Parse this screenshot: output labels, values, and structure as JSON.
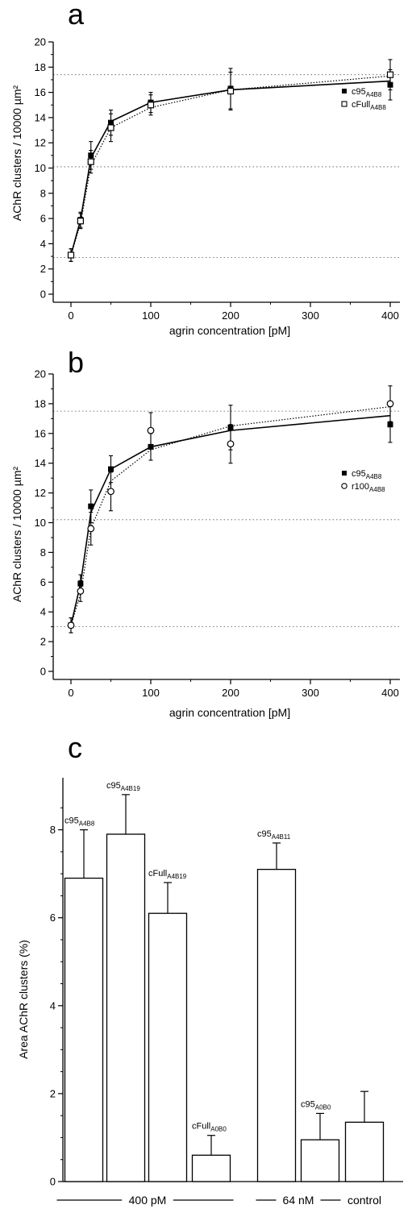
{
  "chart_data": [
    {
      "panel": "a",
      "type": "line",
      "xlabel": "agrin concentration [pM]",
      "ylabel": "AChR clusters / 10000 µm²",
      "xlim": [
        0,
        400
      ],
      "ylim": [
        0,
        20
      ],
      "xticks": [
        0,
        100,
        200,
        300,
        400
      ],
      "yticks": [
        0,
        2,
        4,
        6,
        8,
        10,
        12,
        14,
        16,
        18,
        20
      ],
      "reference_lines": [
        2.9,
        10.1,
        17.4
      ],
      "legend_position": "right",
      "series": [
        {
          "name": "c95",
          "subscript": "A4B8",
          "marker": "filled-square",
          "line": "solid",
          "x": [
            0,
            12,
            25,
            50,
            100,
            200,
            400
          ],
          "y": [
            3.1,
            5.9,
            11.0,
            13.6,
            15.2,
            16.3,
            16.6
          ],
          "err": [
            0.5,
            0.6,
            1.1,
            1.0,
            0.8,
            1.6,
            1.2
          ],
          "fit": [
            3.1,
            5.9,
            10.8,
            13.7,
            15.2,
            16.2,
            16.9
          ]
        },
        {
          "name": "cFull",
          "subscript": "A4B8",
          "marker": "open-square",
          "line": "dotted",
          "x": [
            0,
            12,
            25,
            50,
            100,
            200,
            400
          ],
          "y": [
            3.1,
            5.8,
            10.5,
            13.2,
            15.0,
            16.1,
            17.4
          ],
          "err": [
            0.5,
            0.6,
            0.9,
            1.1,
            0.8,
            1.5,
            1.2
          ],
          "fit": [
            3.1,
            5.6,
            10.2,
            13.2,
            14.8,
            16.2,
            17.3
          ]
        }
      ]
    },
    {
      "panel": "b",
      "type": "line",
      "xlabel": "agrin concentration [pM]",
      "ylabel": "AChR clusters / 10000 µm²",
      "xlim": [
        0,
        400
      ],
      "ylim": [
        0,
        20
      ],
      "xticks": [
        0,
        100,
        200,
        300,
        400
      ],
      "yticks": [
        0,
        2,
        4,
        6,
        8,
        10,
        12,
        14,
        16,
        18,
        20
      ],
      "reference_lines": [
        3.0,
        10.2,
        17.5
      ],
      "legend_position": "right",
      "series": [
        {
          "name": "c95",
          "subscript": "A4B8",
          "marker": "filled-square",
          "line": "solid",
          "x": [
            0,
            12,
            25,
            50,
            100,
            200,
            400
          ],
          "y": [
            3.1,
            5.9,
            11.1,
            13.6,
            15.1,
            16.4,
            16.6
          ],
          "err": [
            0.5,
            0.6,
            1.1,
            0.9,
            0.9,
            1.5,
            1.2
          ],
          "fit": [
            3.1,
            5.9,
            10.7,
            13.6,
            15.1,
            16.2,
            17.2
          ]
        },
        {
          "name": "r100",
          "subscript": "A4B8",
          "marker": "open-circle",
          "line": "dotted",
          "x": [
            0,
            12,
            25,
            50,
            100,
            200,
            400
          ],
          "y": [
            3.1,
            5.4,
            9.6,
            12.1,
            16.2,
            15.3,
            18.0
          ],
          "err": [
            0.5,
            0.7,
            1.1,
            1.3,
            1.2,
            1.3,
            1.2
          ],
          "fit": [
            3.1,
            5.2,
            9.6,
            12.8,
            14.9,
            16.5,
            17.8
          ]
        }
      ]
    },
    {
      "panel": "c",
      "type": "bar",
      "ylabel": "Area AChR clusters (%)",
      "ylim": [
        0,
        9
      ],
      "yticks": [
        0,
        2,
        4,
        6,
        8
      ],
      "bars": [
        {
          "name": "c95",
          "subscript": "A4B8",
          "value": 6.9,
          "err": 1.1
        },
        {
          "name": "c95",
          "subscript": "A4B19",
          "value": 7.9,
          "err": 0.9
        },
        {
          "name": "cFull",
          "subscript": "A4B19",
          "value": 6.1,
          "err": 0.7
        },
        {
          "name": "cFull",
          "subscript": "A0B0",
          "value": 0.6,
          "err": 0.45
        },
        {
          "name": "c95",
          "subscript": "A4B11",
          "value": 7.1,
          "err": 0.6
        },
        {
          "name": "c95",
          "subscript": "A0B0",
          "value": 0.95,
          "err": 0.6
        },
        {
          "name": "",
          "subscript": "",
          "value": 1.35,
          "err": 0.7
        }
      ],
      "groups": [
        {
          "label": "400 pM",
          "bars": [
            0,
            1,
            2,
            3
          ],
          "style": "line"
        },
        {
          "label": "64 nM",
          "bars": [
            4,
            5
          ],
          "style": "line"
        },
        {
          "label": "control",
          "bars": [
            6
          ],
          "style": "plain"
        }
      ]
    }
  ]
}
